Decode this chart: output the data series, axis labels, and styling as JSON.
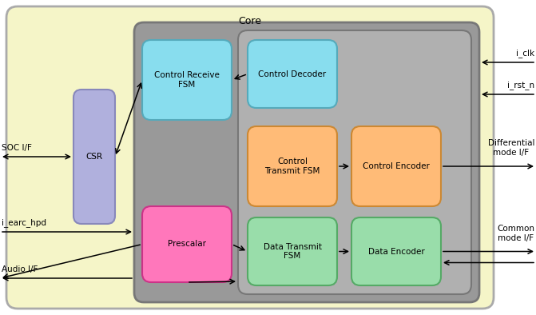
{
  "title": "Core",
  "outer_bg": "#f5f5c8",
  "outer_edge": "#aaaaaa",
  "inner_bg": "#999999",
  "inner_edge": "#777777",
  "inner2_bg": "#b0b0b0",
  "inner2_edge": "#777777",
  "blocks": {
    "CSR": {
      "label": "CSR",
      "color": "#b0b0dd",
      "edge": "#8888bb"
    },
    "control_receive": {
      "label": "Control Receive\nFSM",
      "color": "#88ddee",
      "edge": "#55aabb"
    },
    "control_decoder": {
      "label": "Control Decoder",
      "color": "#88ddee",
      "edge": "#55aabb"
    },
    "control_transmit": {
      "label": "Control\nTransmit FSM",
      "color": "#ffbb77",
      "edge": "#cc8833"
    },
    "control_encoder": {
      "label": "Control Encoder",
      "color": "#ffbb77",
      "edge": "#cc8833"
    },
    "prescalar": {
      "label": "Prescalar",
      "color": "#ff77bb",
      "edge": "#cc3388"
    },
    "data_transmit": {
      "label": "Data Transmit\nFSM",
      "color": "#99ddaa",
      "edge": "#55aa66"
    },
    "data_encoder": {
      "label": "Data Encoder",
      "color": "#99ddaa",
      "edge": "#55aa66"
    }
  },
  "left_labels": [
    "SOC I/F",
    "i_earc_hpd",
    "Audio I/F"
  ],
  "right_labels": [
    "i_clk",
    "i_rst_n",
    "Differential\nmode I/F",
    "Common\nmode I/F"
  ],
  "font_size": 7.5,
  "title_font_size": 9,
  "label_font_size": 7.5
}
